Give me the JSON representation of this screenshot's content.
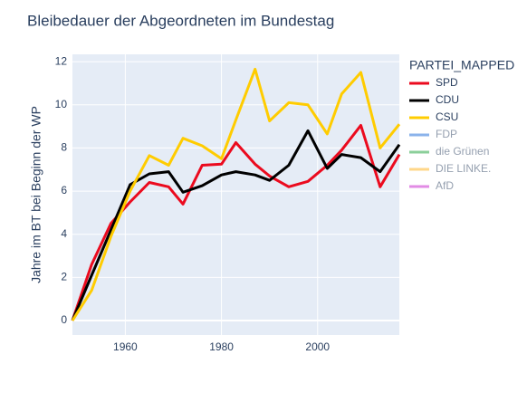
{
  "chart_data": {
    "type": "line",
    "title": "Bleibedauer der Abgeordneten im Bundestag",
    "y_label": "Jahre im BT bei Beginn der WP",
    "legend_title": "PARTEI_MAPPED",
    "x": [
      1949,
      1953,
      1957,
      1961,
      1965,
      1969,
      1972,
      1976,
      1980,
      1983,
      1987,
      1990,
      1994,
      1998,
      2002,
      2005,
      2009,
      2013,
      2017
    ],
    "series": [
      {
        "name": "SPD",
        "color": "#eb0a1e",
        "values": [
          0,
          2.6,
          4.5,
          5.5,
          6.4,
          6.2,
          5.4,
          7.2,
          7.25,
          8.25,
          7.25,
          6.7,
          6.2,
          6.45,
          7.2,
          7.9,
          9.05,
          6.2,
          7.7
        ]
      },
      {
        "name": "CDU",
        "color": "#000000",
        "values": [
          0,
          2.1,
          4.2,
          6.3,
          6.8,
          6.9,
          5.95,
          6.25,
          6.75,
          6.9,
          6.75,
          6.5,
          7.2,
          8.8,
          7.05,
          7.7,
          7.55,
          6.9,
          8.15
        ]
      },
      {
        "name": "CSU",
        "color": "#ffcc00",
        "values": [
          0,
          1.4,
          3.9,
          6.0,
          7.65,
          7.2,
          8.45,
          8.1,
          7.5,
          9.3,
          11.65,
          9.25,
          10.1,
          10.0,
          8.65,
          10.5,
          11.5,
          8.0,
          9.1
        ]
      },
      {
        "name": "FDP",
        "color": "#1a6ad8",
        "visible": "legendonly"
      },
      {
        "name": "die Grünen",
        "color": "#1aa037",
        "visible": "legendonly"
      },
      {
        "name": "DIE LINKE.",
        "color": "#ffb015",
        "visible": "legendonly"
      },
      {
        "name": "AfD",
        "color": "#c71acd",
        "visible": "legendonly"
      }
    ],
    "xlim": [
      1949,
      2017
    ],
    "xticks": [
      1960,
      1980,
      2000
    ],
    "ylim": [
      -0.67,
      12.34
    ],
    "yticks": [
      0,
      2,
      4,
      6,
      8,
      10,
      12
    ],
    "grid": true,
    "legend_position": "right"
  }
}
